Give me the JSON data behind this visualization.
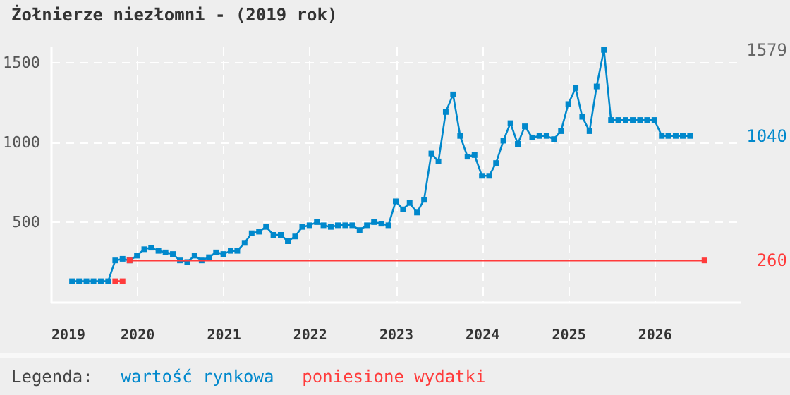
{
  "chart_data": {
    "type": "line",
    "title": "Żołnierze niezłomni - (2019 rok)",
    "legend_title": "Legenda:",
    "legend": "bottom",
    "grid": true,
    "marker": "square",
    "line_style": "solid",
    "xlim": [
      "2019-01",
      "2027-01"
    ],
    "xticks": [
      {
        "value": "2019-01",
        "label": "2019"
      },
      {
        "value": "2020-01",
        "label": "2020"
      },
      {
        "value": "2021-01",
        "label": "2021"
      },
      {
        "value": "2022-01",
        "label": "2022"
      },
      {
        "value": "2023-01",
        "label": "2023"
      },
      {
        "value": "2024-01",
        "label": "2024"
      },
      {
        "value": "2025-01",
        "label": "2025"
      },
      {
        "value": "2026-01",
        "label": "2026"
      }
    ],
    "ylim": [
      0,
      1600
    ],
    "yticks": [
      500,
      1000,
      1500
    ],
    "y2lim": [
      0,
      1600
    ],
    "y2ticks": [
      1579,
      1040,
      260
    ],
    "series": [
      {
        "name": "wartość rynkowa",
        "color": "#0088cc",
        "x": [
          "2019-04",
          "2019-05",
          "2019-06",
          "2019-07",
          "2019-08",
          "2019-09",
          "2019-10",
          "2019-11",
          "2019-12",
          "2020-01",
          "2020-02",
          "2020-03",
          "2020-04",
          "2020-05",
          "2020-06",
          "2020-07",
          "2020-08",
          "2020-09",
          "2020-10",
          "2020-11",
          "2020-12",
          "2021-01",
          "2021-02",
          "2021-03",
          "2021-04",
          "2021-05",
          "2021-06",
          "2021-07",
          "2021-08",
          "2021-09",
          "2021-10",
          "2021-11",
          "2021-12",
          "2022-01",
          "2022-02",
          "2022-03",
          "2022-04",
          "2022-05",
          "2022-06",
          "2022-07",
          "2022-08",
          "2022-09",
          "2022-10",
          "2022-11",
          "2022-12",
          "2023-01",
          "2023-02",
          "2023-03",
          "2023-04",
          "2023-05",
          "2023-06",
          "2023-07",
          "2023-08",
          "2023-09",
          "2023-10",
          "2023-11",
          "2023-12",
          "2024-01",
          "2024-02",
          "2024-03",
          "2024-04",
          "2024-05",
          "2024-06",
          "2024-07",
          "2024-08",
          "2024-09",
          "2024-10",
          "2024-11",
          "2024-12",
          "2025-01",
          "2025-02",
          "2025-03",
          "2025-04",
          "2025-05",
          "2025-06",
          "2025-07",
          "2025-08",
          "2025-09",
          "2025-10",
          "2025-11",
          "2025-12",
          "2026-01",
          "2026-02",
          "2026-03",
          "2026-04",
          "2026-05",
          "2026-06"
        ],
        "values": [
          130,
          130,
          130,
          130,
          130,
          130,
          260,
          270,
          260,
          290,
          330,
          340,
          320,
          310,
          300,
          260,
          250,
          290,
          260,
          280,
          310,
          300,
          320,
          320,
          370,
          430,
          440,
          470,
          420,
          420,
          380,
          410,
          470,
          480,
          500,
          480,
          470,
          480,
          480,
          480,
          450,
          480,
          500,
          490,
          480,
          630,
          580,
          620,
          560,
          640,
          930,
          880,
          1190,
          1300,
          1040,
          910,
          920,
          790,
          790,
          870,
          1010,
          1120,
          990,
          1100,
          1030,
          1040,
          1040,
          1020,
          1070,
          1240,
          1340,
          1160,
          1070,
          1350,
          1579,
          1140,
          1140,
          1140,
          1140,
          1140,
          1140,
          1140,
          1040,
          1040,
          1040,
          1040,
          1040
        ]
      },
      {
        "name": "poniesione wydatki",
        "color": "#ff3b3b",
        "x": [
          "2019-10",
          "2019-11",
          "2019-11-20",
          "2019-12",
          "2026-08"
        ],
        "values": [
          130,
          130,
          null,
          260,
          260
        ]
      }
    ]
  }
}
